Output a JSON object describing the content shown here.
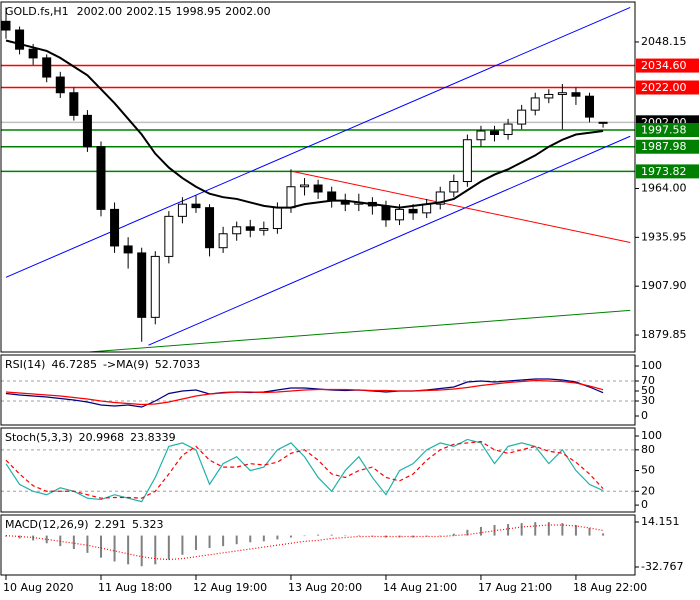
{
  "chart_data": [
    {
      "type": "candlestick",
      "title": "GOLD.fs,H1",
      "ohlc_labels": [
        "2002.00",
        "2002.15",
        "1998.95",
        "2002.00"
      ],
      "categories": [
        "10 Aug 2020",
        null,
        null,
        null,
        null,
        null,
        null,
        "11 Aug 18:00",
        null,
        null,
        null,
        null,
        null,
        null,
        "12 Aug 19:00",
        null,
        null,
        null,
        null,
        null,
        null,
        "13 Aug 20:00",
        null,
        null,
        null,
        null,
        null,
        null,
        "14 Aug 21:00",
        null,
        null,
        null,
        null,
        null,
        null,
        "17 Aug 21:00",
        null,
        null,
        null,
        null,
        null,
        null,
        "18 Aug 22:00",
        null,
        null
      ],
      "open": [
        2060,
        2055,
        2044,
        2039,
        2028,
        2019,
        2006,
        1988,
        1952,
        1931,
        1927,
        1890,
        1925,
        1948,
        1955,
        1953,
        1930,
        1938,
        1942,
        1940,
        1941,
        1953,
        1965,
        1966,
        1962,
        1957,
        1955,
        1956,
        1954,
        1946,
        1952,
        1950,
        1955,
        1962,
        1968,
        1992,
        1997,
        1995,
        2001,
        2009,
        2016,
        2018,
        2019,
        2017,
        2002
      ],
      "high": [
        2068,
        2057,
        2047,
        2041,
        2031,
        2022,
        2009,
        1991,
        1956,
        1936,
        1930,
        1928,
        1951,
        1959,
        1960,
        1955,
        1942,
        1945,
        1946,
        1945,
        1956,
        1975,
        1970,
        1969,
        1965,
        1961,
        1961,
        1959,
        1957,
        1955,
        1955,
        1958,
        1965,
        1972,
        1995,
        2000,
        2000,
        2004,
        2012,
        2019,
        2021,
        2024,
        2022,
        2019,
        2002.15
      ],
      "low": [
        2050,
        2041,
        2035,
        2025,
        2016,
        2003,
        1985,
        1948,
        1927,
        1918,
        1876,
        1886,
        1921,
        1944,
        1950,
        1925,
        1927,
        1934,
        1936,
        1937,
        1938,
        1950,
        1960,
        1958,
        1953,
        1951,
        1951,
        1949,
        1942,
        1943,
        1946,
        1947,
        1952,
        1959,
        1965,
        1988,
        1991,
        1992,
        1998,
        2006,
        2013,
        1998,
        2012,
        2002,
        1998.95
      ],
      "close": [
        2055,
        2044,
        2039,
        2028,
        2019,
        2006,
        1988,
        1952,
        1931,
        1927,
        1890,
        1925,
        1948,
        1955,
        1953,
        1930,
        1938,
        1942,
        1940,
        1941,
        1953,
        1965,
        1966,
        1962,
        1957,
        1955,
        1956,
        1954,
        1946,
        1952,
        1950,
        1955,
        1962,
        1968,
        1992,
        1997,
        1995,
        2001,
        2009,
        2016,
        2018,
        2019,
        2017,
        2005,
        2002
      ],
      "up_color": "#ffffff",
      "down_color": "#000000",
      "ma": {
        "color": "#000000",
        "values": [
          2049,
          2047,
          2045,
          2043,
          2039,
          2034,
          2029,
          2021,
          2013,
          2004,
          1995,
          1984,
          1976,
          1970,
          1965,
          1961,
          1959,
          1958,
          1956,
          1954,
          1953,
          1953,
          1955,
          1956,
          1957,
          1957,
          1956,
          1955,
          1954,
          1953,
          1954,
          1955,
          1956,
          1958,
          1963,
          1968,
          1972,
          1975,
          1979,
          1983,
          1988,
          1992,
          1995,
          1996,
          1997
        ]
      },
      "levels": [
        {
          "value": 2034.6,
          "label": "2034.60",
          "color": "#ff0000",
          "label_color": "#ff0000"
        },
        {
          "value": 2022,
          "label": "2022.00",
          "color": "#ff0000",
          "label_color": "#ff0000"
        },
        {
          "value": 2002,
          "label": "2002.00",
          "color": "#c0c0c0",
          "label_color": "#000000"
        },
        {
          "value": 1997.58,
          "label": "1997.58",
          "color": "#008000",
          "label_color": "#008000"
        },
        {
          "value": 1987.98,
          "label": "1987.98",
          "color": "#008000",
          "label_color": "#008000"
        },
        {
          "value": 1973.82,
          "label": "1973.82",
          "color": "#008000",
          "label_color": "#008000"
        }
      ],
      "trendlines": [
        {
          "color": "#0000ff",
          "x": [
            0,
            46
          ],
          "y": [
            1913,
            2068
          ]
        },
        {
          "color": "#0000ff",
          "x": [
            10.5,
            46
          ],
          "y": [
            1874,
            1994
          ]
        },
        {
          "color": "#ff0000",
          "x": [
            21,
            46
          ],
          "y": [
            1974,
            1933
          ]
        },
        {
          "color": "#008000",
          "x": [
            6,
            46
          ],
          "y": [
            1870,
            1894
          ]
        }
      ],
      "ylim": [
        1870.1,
        2071.1
      ],
      "yticks": [
        2048.15,
        {
          "value": 1964,
          "label": "1964.00"
        },
        1935.95,
        {
          "value": 1907.9,
          "label": "1907.90"
        },
        1879.85
      ]
    },
    {
      "type": "line",
      "series": [
        {
          "name": "RSI(14)",
          "color": "#000080",
          "values": [
            45,
            42,
            40,
            38,
            35,
            32,
            28,
            22,
            20,
            22,
            18,
            30,
            45,
            50,
            52,
            44,
            47,
            48,
            47,
            48,
            52,
            56,
            56,
            54,
            52,
            51,
            52,
            50,
            48,
            50,
            50,
            52,
            55,
            58,
            68,
            70,
            68,
            70,
            72,
            74,
            74,
            72,
            68,
            58,
            46.7285
          ]
        },
        {
          "name": "->MA(9)",
          "color": "#ff0000",
          "values": [
            48,
            46,
            44,
            42,
            40,
            37,
            34,
            30,
            27,
            25,
            23,
            24,
            28,
            34,
            40,
            44,
            46,
            48,
            48,
            47,
            48,
            50,
            52,
            53,
            53,
            53,
            52,
            51,
            51,
            50,
            50,
            51,
            52,
            54,
            57,
            61,
            64,
            67,
            69,
            71,
            70,
            69,
            66,
            60,
            52.7033
          ]
        }
      ],
      "levels": [
        70,
        30
      ],
      "ylim": [
        -18,
        122
      ],
      "yticks": [
        100,
        70,
        50,
        30,
        0
      ]
    },
    {
      "type": "line",
      "series": [
        {
          "name": "Stoch(5,3,3)",
          "color": "#20b2aa",
          "values": [
            60,
            30,
            20,
            15,
            25,
            20,
            10,
            8,
            15,
            10,
            5,
            40,
            85,
            90,
            80,
            30,
            60,
            70,
            50,
            55,
            80,
            90,
            70,
            40,
            20,
            50,
            70,
            40,
            15,
            50,
            60,
            80,
            90,
            85,
            95,
            90,
            60,
            85,
            90,
            85,
            60,
            80,
            50,
            30,
            20.9968
          ]
        },
        {
          "color": "#ff0000",
          "dash": "dashed",
          "values": [
            65,
            45,
            28,
            20,
            20,
            20,
            15,
            10,
            11,
            11,
            10,
            20,
            45,
            72,
            85,
            65,
            55,
            55,
            60,
            58,
            62,
            75,
            80,
            65,
            45,
            40,
            50,
            55,
            40,
            35,
            45,
            65,
            80,
            88,
            90,
            92,
            80,
            75,
            80,
            85,
            78,
            75,
            62,
            45,
            23.8339
          ]
        }
      ],
      "levels": [
        80,
        20
      ],
      "ylim": [
        -10,
        111.6
      ],
      "yticks": [
        100,
        80,
        50,
        20,
        0
      ]
    },
    {
      "type": "macd",
      "series": [
        {
          "name": "MACD(12,26,9)",
          "type": "bar",
          "color": "#808080",
          "values": [
            -1,
            -3,
            -5,
            -8,
            -11,
            -14,
            -18,
            -23,
            -27,
            -30,
            -32,
            -30,
            -25,
            -20,
            -15,
            -13,
            -11,
            -9,
            -7,
            -6,
            -4,
            -2,
            0,
            1,
            1,
            0,
            0,
            -1,
            -2,
            -2,
            -2,
            -1,
            0,
            2,
            6,
            9,
            11,
            12,
            13,
            14,
            14,
            13,
            11,
            8,
            2.291
          ]
        },
        {
          "type": "line",
          "color": "#ff0000",
          "dash": "dotted",
          "values": [
            0,
            -1,
            -2,
            -4,
            -6,
            -8,
            -10,
            -13,
            -16,
            -19,
            -22,
            -24,
            -25,
            -24,
            -22,
            -20,
            -18,
            -16,
            -14,
            -12,
            -10,
            -8,
            -6,
            -5,
            -3,
            -2,
            -1,
            -1,
            -1,
            -1,
            -1,
            -1,
            -1,
            0,
            1,
            3,
            5,
            7,
            9,
            10,
            11,
            11,
            10,
            8,
            5.323
          ]
        }
      ],
      "ylim": [
        -41.1,
        21.45
      ],
      "yticks": [
        14.151,
        -32.767
      ]
    }
  ]
}
